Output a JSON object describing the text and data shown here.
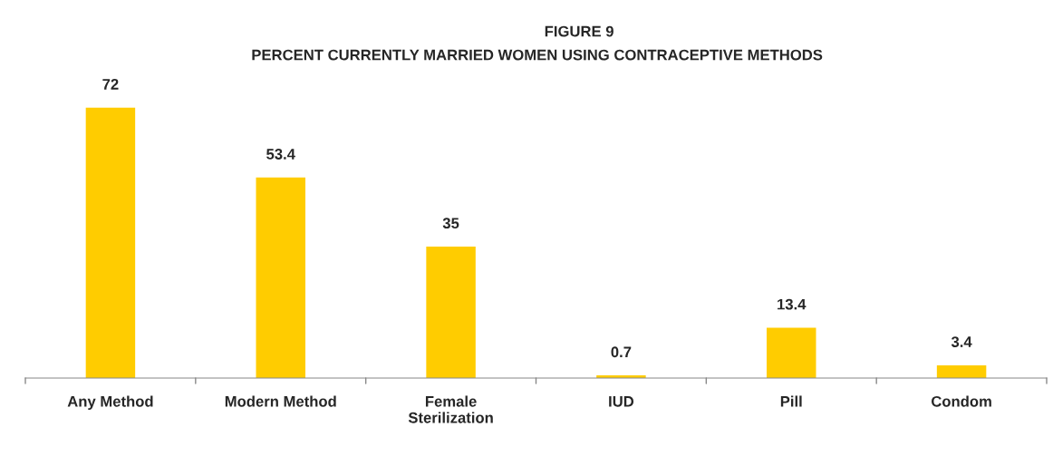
{
  "chart_data": {
    "type": "bar",
    "title": "FIGURE 9",
    "subtitle": "PERCENT CURRENTLY MARRIED WOMEN USING CONTRACEPTIVE METHODS",
    "categories": [
      "Any Method",
      "Modern Method",
      "Female\nSterilization",
      "IUD",
      "Pill",
      "Condom"
    ],
    "values": [
      72,
      53.4,
      35,
      0.7,
      13.4,
      3.4
    ],
    "color": "#ffcc00",
    "data_labels": true,
    "grid": false,
    "legend": false
  }
}
